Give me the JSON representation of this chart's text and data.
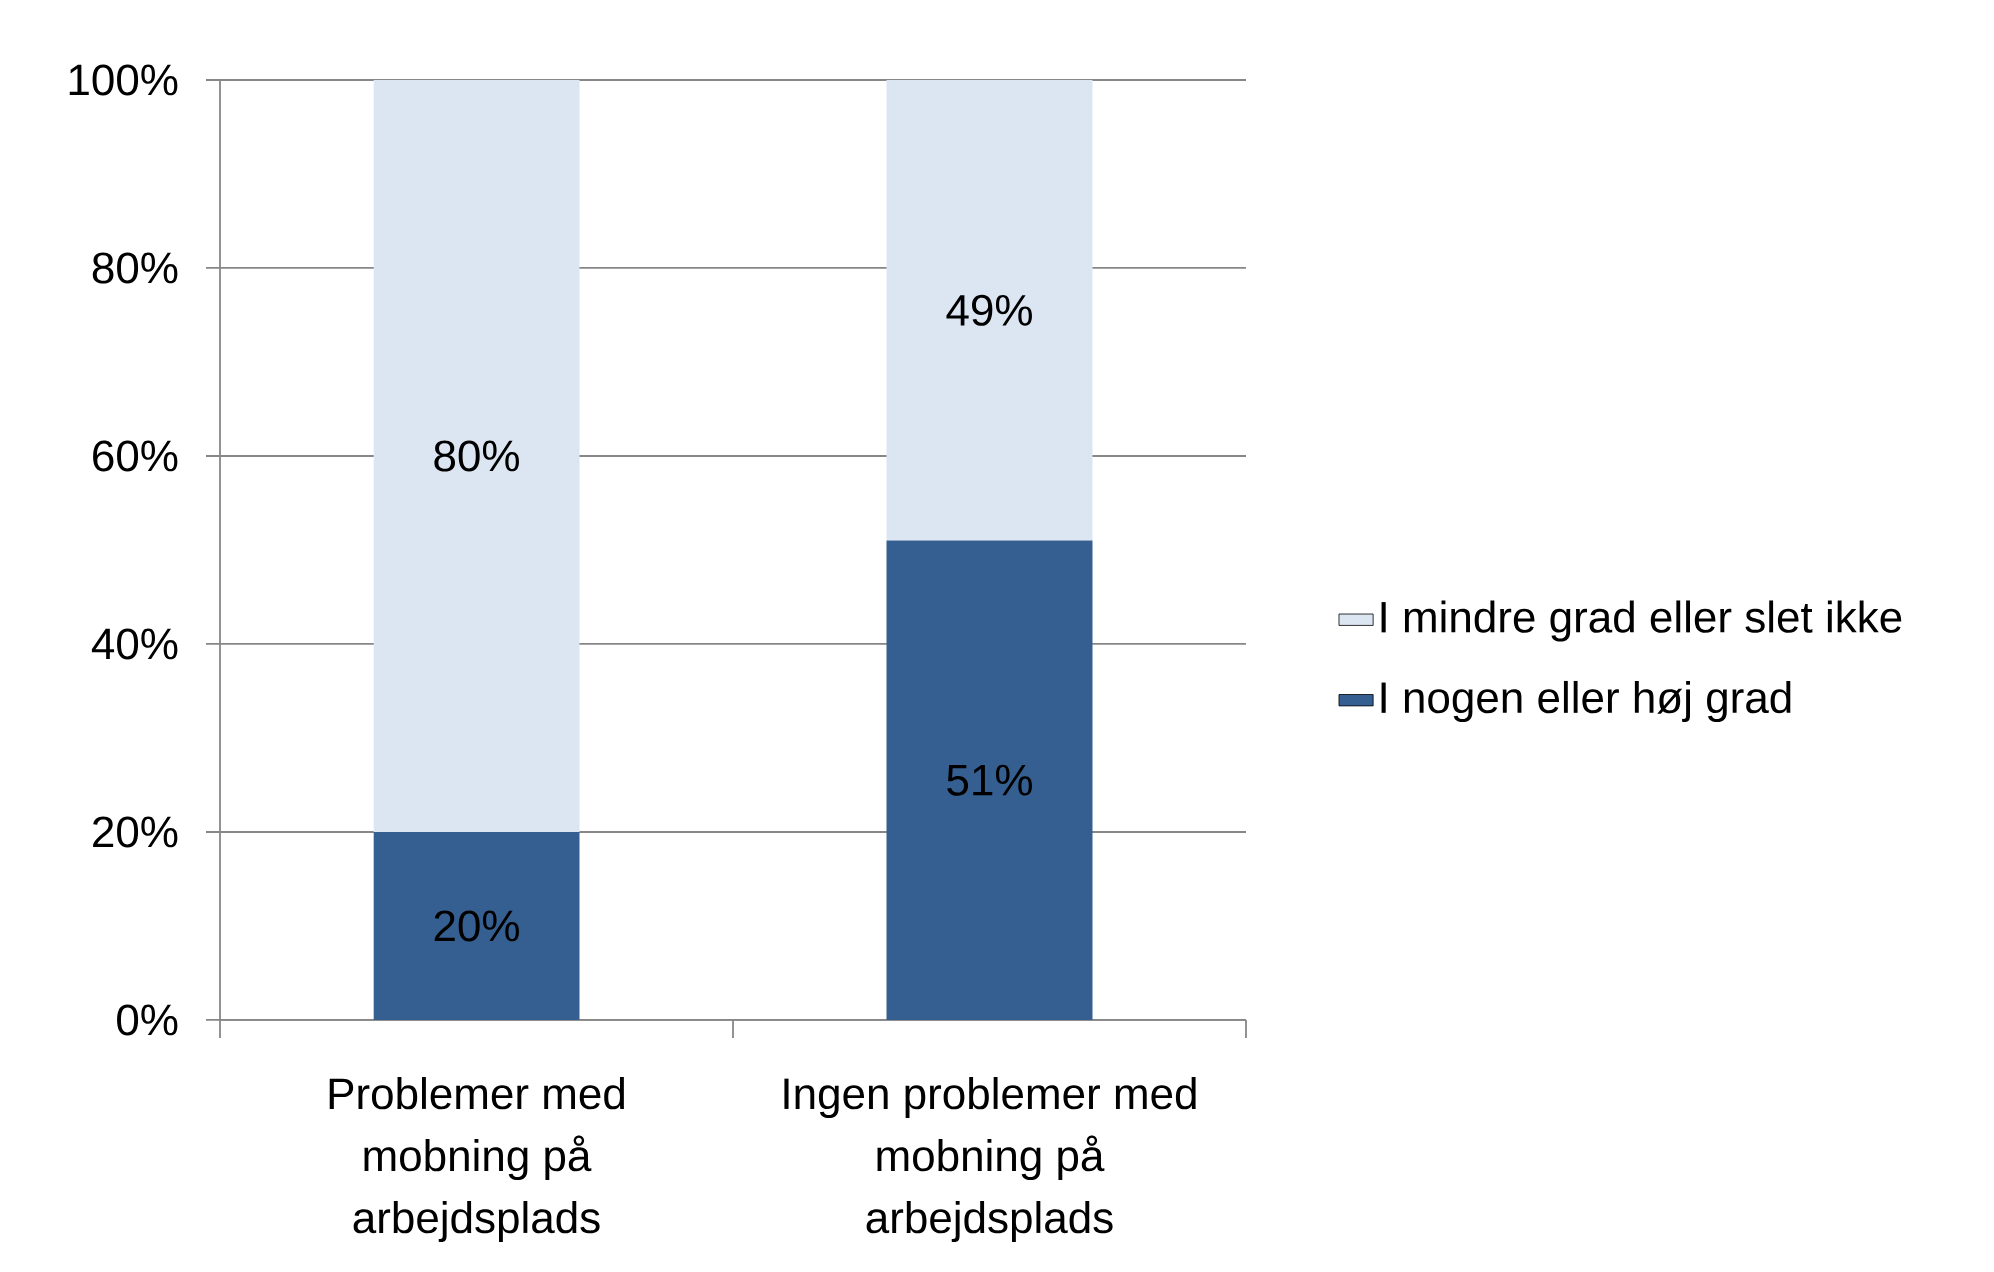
{
  "chart_data": {
    "type": "bar",
    "stacked": true,
    "categories": [
      "Problemer med mobning på arbejdsplads",
      "Ingen problemer med mobning på arbejdsplads"
    ],
    "series": [
      {
        "name": "I nogen eller høj grad",
        "color": "#365f91",
        "values": [
          20,
          51
        ],
        "value_labels": [
          "20%",
          "51%"
        ]
      },
      {
        "name": "I mindre grad eller slet ikke",
        "color": "#dce6f2",
        "values": [
          80,
          49
        ],
        "value_labels": [
          "80%",
          "49%"
        ]
      }
    ],
    "ylim": [
      0,
      100
    ],
    "yticks": [
      {
        "value": 0,
        "label": "0%"
      },
      {
        "value": 20,
        "label": "20%"
      },
      {
        "value": 40,
        "label": "40%"
      },
      {
        "value": 60,
        "label": "60%"
      },
      {
        "value": 80,
        "label": "80%"
      },
      {
        "value": 100,
        "label": "100%"
      }
    ],
    "grid": "y",
    "legend": "right"
  }
}
